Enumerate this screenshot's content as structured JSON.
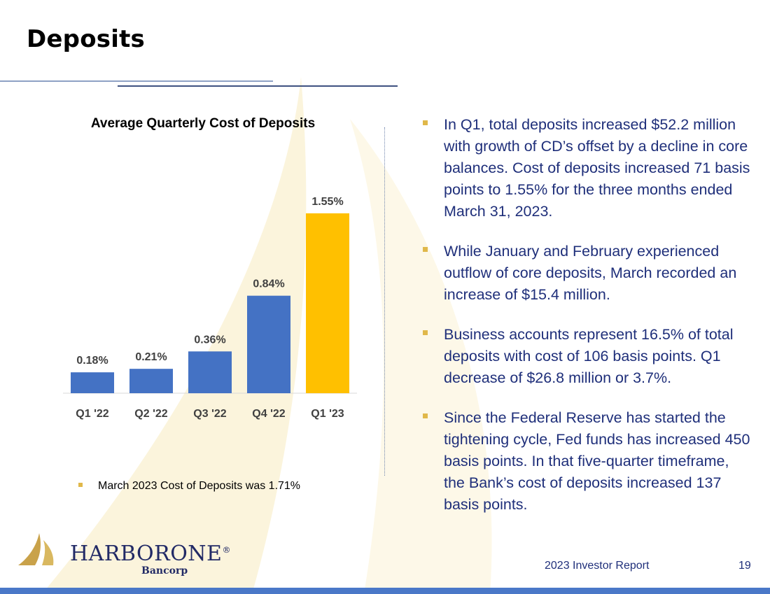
{
  "slide": {
    "title": "Deposits",
    "footer": "2023 Investor Report",
    "page_number": "19"
  },
  "colors": {
    "bar": "#4472c4",
    "highlight": "#ffc000",
    "bullet_text": "#1f2f7a",
    "bullet_marker": "#e0b84a"
  },
  "chart_data": {
    "type": "bar",
    "title": "Average Quarterly Cost of Deposits",
    "categories": [
      "Q1 '22",
      "Q2 '22",
      "Q3 '22",
      "Q4 '22",
      "Q1 '23"
    ],
    "values": [
      0.18,
      0.21,
      0.36,
      0.84,
      1.55
    ],
    "labels": [
      "0.18%",
      "0.21%",
      "0.36%",
      "0.84%",
      "1.55%"
    ],
    "highlight_index": 4,
    "ylim": [
      0,
      1.7
    ],
    "xlabel": "",
    "ylabel": "",
    "grid": false
  },
  "chart_note": "March 2023 Cost of Deposits was 1.71%",
  "bullets": [
    "In Q1, total deposits increased $52.2 million with growth of CD’s offset by a decline in core balances.   Cost of deposits increased 71 basis points to 1.55% for the three months ended March 31, 2023.",
    "While January and February experienced outflow of core deposits, March recorded an increase of $15.4 million.",
    "Business accounts represent 16.5% of total deposits with cost of 106 basis points. Q1 decrease of $26.8 million or 3.7%.",
    "Since the Federal Reserve has started the tightening cycle, Fed funds has increased 450 basis points. In that five-quarter timeframe, the Bank’s cost of deposits increased 137 basis points."
  ],
  "logo": {
    "name": "HARBORONE",
    "registered": "®",
    "sub": "Bancorp"
  }
}
